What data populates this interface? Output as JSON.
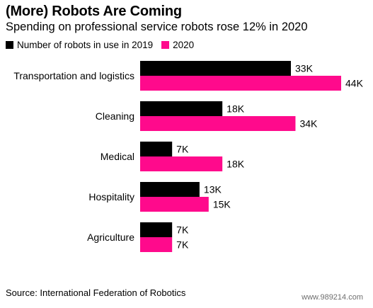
{
  "title": "(More) Robots Are Coming",
  "subtitle": "Spending on professional service robots rose 12% in 2020",
  "source": "Source: International Federation of Robotics",
  "watermark": "www.989214.com",
  "colors": {
    "series_2019": "#000000",
    "series_2020": "#ff0a8c"
  },
  "chart_data": {
    "type": "bar",
    "orientation": "horizontal",
    "categories": [
      "Transportation and logistics",
      "Cleaning",
      "Medical",
      "Hospitality",
      "Agriculture"
    ],
    "series": [
      {
        "name": "Number of robots in use in 2019",
        "values": [
          33,
          18,
          7,
          13,
          7
        ],
        "labels": [
          "33K",
          "18K",
          "7K",
          "13K",
          "7K"
        ]
      },
      {
        "name": "2020",
        "values": [
          44,
          34,
          18,
          15,
          7
        ],
        "labels": [
          "44K",
          "34K",
          "18K",
          "15K",
          "7K"
        ]
      }
    ],
    "xlim": [
      0,
      44
    ],
    "grid": false,
    "legend_position": "top-left"
  }
}
